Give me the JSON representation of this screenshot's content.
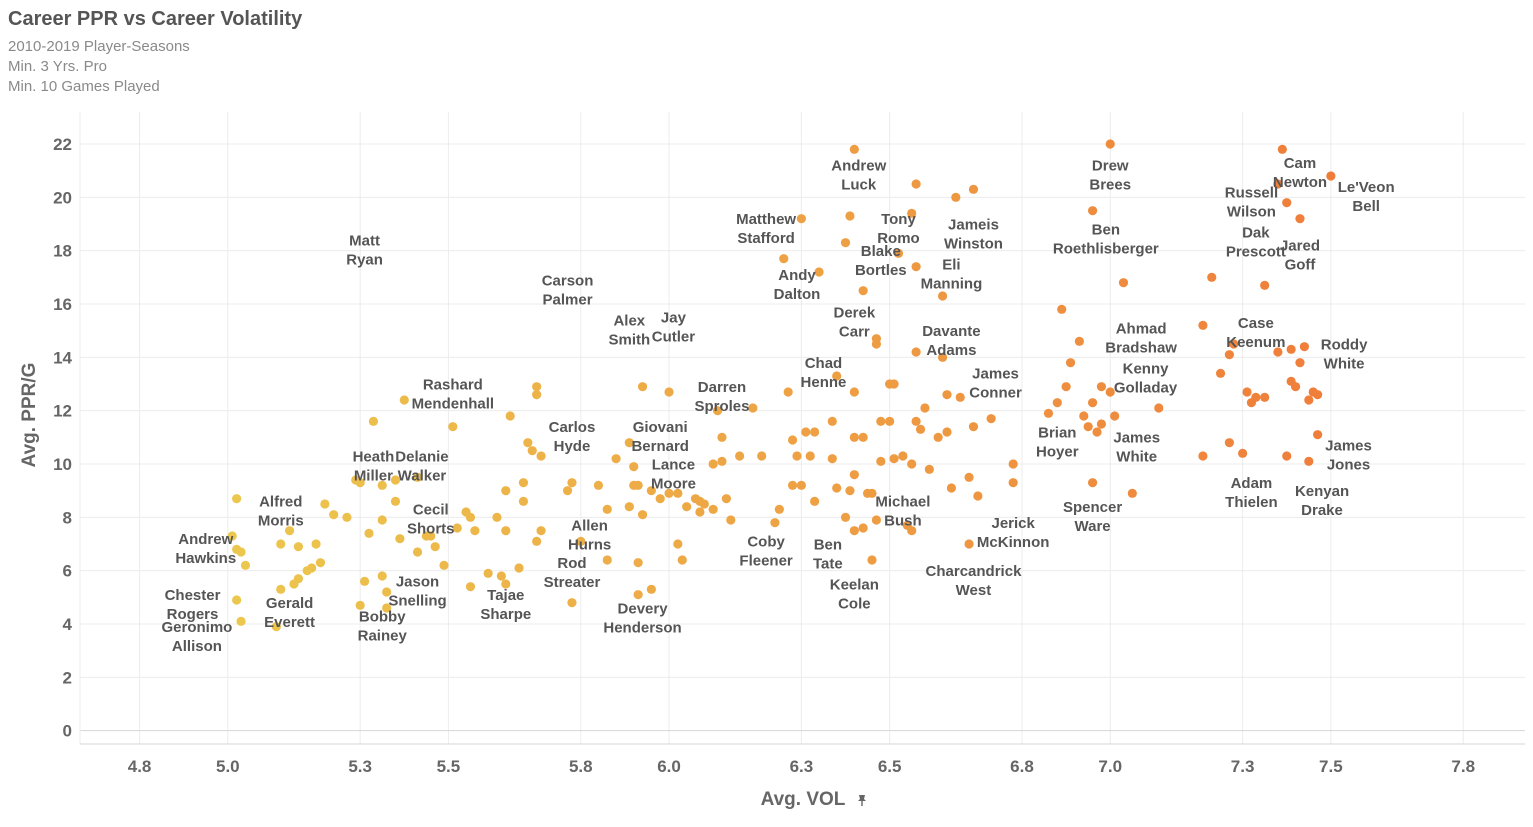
{
  "header": {
    "title": "Career PPR vs Career Volatility",
    "subtitles": [
      "2010-2019 Player-Seasons",
      "Min. 3 Yrs. Pro",
      "Min. 10 Games Played"
    ]
  },
  "colors": {
    "low": "#ecc84e",
    "high": "#ef7d3a"
  },
  "chart_data": {
    "type": "scatter",
    "title": "Career PPR vs Career Volatility",
    "xlabel": "Avg. VOL",
    "xlabel_icon": "pin-icon",
    "ylabel": "Avg. PPR/G",
    "xlim": [
      4.8,
      7.8
    ],
    "ylim": [
      0,
      22
    ],
    "xticks": [
      "4.8",
      "5.0",
      "5.3",
      "5.5",
      "5.8",
      "6.0",
      "6.3",
      "6.5",
      "6.8",
      "7.0",
      "7.3",
      "7.5",
      "7.8"
    ],
    "yticks": [
      "0",
      "2",
      "4",
      "6",
      "8",
      "10",
      "12",
      "14",
      "16",
      "18",
      "20",
      "22"
    ],
    "grid": true,
    "labels": [
      {
        "text": "Cam\nNewton",
        "x": 7.43,
        "y": 21.1
      },
      {
        "text": "Le'Veon\nBell",
        "x": 7.58,
        "y": 20.2
      },
      {
        "text": "Drew\nBrees",
        "x": 7.0,
        "y": 21.0
      },
      {
        "text": "Russell\nWilson",
        "x": 7.32,
        "y": 20.0
      },
      {
        "text": "Dak\nPrescott",
        "x": 7.33,
        "y": 18.5
      },
      {
        "text": "Jared\nGoff",
        "x": 7.43,
        "y": 18.0
      },
      {
        "text": "Ben\nRoethlisberger",
        "x": 6.99,
        "y": 18.6
      },
      {
        "text": "Andrew\nLuck",
        "x": 6.43,
        "y": 21.0
      },
      {
        "text": "Matthew\nStafford",
        "x": 6.22,
        "y": 19.0
      },
      {
        "text": "Tony\nRomo",
        "x": 6.52,
        "y": 19.0
      },
      {
        "text": "Jameis\nWinston",
        "x": 6.69,
        "y": 18.8
      },
      {
        "text": "Blake\nBortles",
        "x": 6.48,
        "y": 17.8
      },
      {
        "text": "Eli\nManning",
        "x": 6.64,
        "y": 17.3
      },
      {
        "text": "Andy\nDalton",
        "x": 6.29,
        "y": 16.9
      },
      {
        "text": "Derek\nCarr",
        "x": 6.42,
        "y": 15.5
      },
      {
        "text": "Davante\nAdams",
        "x": 6.64,
        "y": 14.8
      },
      {
        "text": "Chad\nHenne",
        "x": 6.35,
        "y": 13.6
      },
      {
        "text": "James\nConner",
        "x": 6.74,
        "y": 13.2
      },
      {
        "text": "Case\nKeenum",
        "x": 7.33,
        "y": 15.1
      },
      {
        "text": "Ahmad\nBradshaw",
        "x": 7.07,
        "y": 14.9
      },
      {
        "text": "Roddy\nWhite",
        "x": 7.53,
        "y": 14.3
      },
      {
        "text": "Kenny\nGolladay",
        "x": 7.08,
        "y": 13.4
      },
      {
        "text": "Matt\nRyan",
        "x": 5.31,
        "y": 18.2
      },
      {
        "text": "Carson\nPalmer",
        "x": 5.77,
        "y": 16.7
      },
      {
        "text": "Alex\nSmith",
        "x": 5.91,
        "y": 15.2
      },
      {
        "text": "Jay\nCutler",
        "x": 6.01,
        "y": 15.3
      },
      {
        "text": "Rashard\nMendenhall",
        "x": 5.51,
        "y": 12.8
      },
      {
        "text": "Darren\nSproles",
        "x": 6.12,
        "y": 12.7
      },
      {
        "text": "Carlos\nHyde",
        "x": 5.78,
        "y": 11.2
      },
      {
        "text": "Giovani\nBernard",
        "x": 5.98,
        "y": 11.2
      },
      {
        "text": "Brian\nHoyer",
        "x": 6.88,
        "y": 11.0
      },
      {
        "text": "James\nWhite",
        "x": 7.06,
        "y": 10.8
      },
      {
        "text": "James\nJones",
        "x": 7.54,
        "y": 10.5
      },
      {
        "text": "Heath\nMiller",
        "x": 5.33,
        "y": 10.1
      },
      {
        "text": "Delanie\nWalker",
        "x": 5.44,
        "y": 10.1
      },
      {
        "text": "Lance\nMoore",
        "x": 6.01,
        "y": 9.8
      },
      {
        "text": "Adam\nThielen",
        "x": 7.32,
        "y": 9.1
      },
      {
        "text": "Kenyan\nDrake",
        "x": 7.48,
        "y": 8.8
      },
      {
        "text": "Alfred\nMorris",
        "x": 5.12,
        "y": 8.4
      },
      {
        "text": "Cecil\nShorts",
        "x": 5.46,
        "y": 8.1
      },
      {
        "text": "Michael\nBush",
        "x": 6.53,
        "y": 8.4
      },
      {
        "text": "Spencer\nWare",
        "x": 6.96,
        "y": 8.2
      },
      {
        "text": "Jerick\nMcKinnon",
        "x": 6.78,
        "y": 7.6
      },
      {
        "text": "Allen\nHurns",
        "x": 5.82,
        "y": 7.5
      },
      {
        "text": "Andrew\nHawkins",
        "x": 4.95,
        "y": 7.0
      },
      {
        "text": "Coby\nFleener",
        "x": 6.22,
        "y": 6.9
      },
      {
        "text": "Ben\nTate",
        "x": 6.36,
        "y": 6.8
      },
      {
        "text": "Rod\nStreater",
        "x": 5.78,
        "y": 6.1
      },
      {
        "text": "Charcandrick\nWest",
        "x": 6.69,
        "y": 5.8
      },
      {
        "text": "Keelan\nCole",
        "x": 6.42,
        "y": 5.3
      },
      {
        "text": "Jason\nSnelling",
        "x": 5.43,
        "y": 5.4
      },
      {
        "text": "Tajae\nSharpe",
        "x": 5.63,
        "y": 4.9
      },
      {
        "text": "Chester\nRogers",
        "x": 4.92,
        "y": 4.9
      },
      {
        "text": "Gerald\nEverett",
        "x": 5.14,
        "y": 4.6
      },
      {
        "text": "Bobby\nRainey",
        "x": 5.35,
        "y": 4.1
      },
      {
        "text": "Devery\nHenderson",
        "x": 5.94,
        "y": 4.4
      },
      {
        "text": "Geronimo\nAllison",
        "x": 4.93,
        "y": 3.7
      }
    ],
    "points": [
      [
        7.39,
        21.8
      ],
      [
        7.5,
        20.8
      ],
      [
        7.0,
        22.0
      ],
      [
        7.38,
        20.5
      ],
      [
        7.4,
        19.8
      ],
      [
        7.43,
        19.2
      ],
      [
        6.96,
        19.5
      ],
      [
        6.42,
        21.8
      ],
      [
        6.3,
        19.2
      ],
      [
        6.41,
        19.3
      ],
      [
        6.56,
        20.5
      ],
      [
        6.65,
        20.0
      ],
      [
        6.69,
        20.3
      ],
      [
        6.55,
        19.4
      ],
      [
        6.4,
        18.3
      ],
      [
        6.52,
        17.9
      ],
      [
        6.56,
        17.4
      ],
      [
        6.26,
        17.7
      ],
      [
        6.34,
        17.2
      ],
      [
        6.44,
        16.5
      ],
      [
        6.62,
        16.3
      ],
      [
        6.47,
        14.7
      ],
      [
        6.47,
        14.5
      ],
      [
        6.56,
        14.2
      ],
      [
        6.38,
        13.3
      ],
      [
        6.62,
        14.0
      ],
      [
        6.5,
        13.0
      ],
      [
        6.51,
        13.0
      ],
      [
        6.58,
        12.1
      ],
      [
        6.63,
        12.6
      ],
      [
        6.66,
        12.5
      ],
      [
        6.42,
        12.7
      ],
      [
        6.27,
        12.7
      ],
      [
        6.19,
        12.1
      ],
      [
        7.03,
        16.8
      ],
      [
        7.23,
        17.0
      ],
      [
        7.35,
        16.7
      ],
      [
        6.89,
        15.8
      ],
      [
        7.21,
        15.2
      ],
      [
        7.28,
        14.5
      ],
      [
        6.93,
        14.6
      ],
      [
        7.44,
        14.4
      ],
      [
        7.38,
        14.2
      ],
      [
        7.41,
        14.3
      ],
      [
        7.27,
        14.1
      ],
      [
        7.43,
        13.8
      ],
      [
        6.91,
        13.8
      ],
      [
        6.98,
        12.9
      ],
      [
        7.0,
        12.7
      ],
      [
        6.88,
        12.3
      ],
      [
        6.9,
        12.9
      ],
      [
        7.25,
        13.4
      ],
      [
        7.41,
        13.1
      ],
      [
        7.42,
        12.9
      ],
      [
        7.31,
        12.7
      ],
      [
        7.33,
        12.5
      ],
      [
        7.32,
        12.3
      ],
      [
        7.35,
        12.5
      ],
      [
        7.46,
        12.7
      ],
      [
        7.47,
        12.6
      ],
      [
        7.45,
        12.4
      ],
      [
        6.86,
        11.9
      ],
      [
        6.96,
        12.3
      ],
      [
        6.94,
        11.8
      ],
      [
        6.98,
        11.5
      ],
      [
        7.01,
        11.8
      ],
      [
        7.11,
        12.1
      ],
      [
        6.95,
        11.4
      ],
      [
        7.47,
        11.1
      ],
      [
        6.97,
        11.2
      ],
      [
        7.27,
        10.8
      ],
      [
        7.21,
        10.3
      ],
      [
        7.3,
        10.4
      ],
      [
        7.4,
        10.3
      ],
      [
        7.45,
        10.1
      ],
      [
        6.96,
        9.3
      ],
      [
        7.05,
        8.9
      ],
      [
        6.78,
        10.0
      ],
      [
        6.78,
        9.3
      ],
      [
        6.68,
        9.5
      ],
      [
        6.64,
        9.1
      ],
      [
        6.7,
        8.8
      ],
      [
        6.55,
        10.0
      ],
      [
        6.59,
        9.8
      ],
      [
        6.53,
        10.3
      ],
      [
        6.51,
        10.2
      ],
      [
        6.48,
        11.6
      ],
      [
        6.5,
        11.6
      ],
      [
        6.56,
        11.6
      ],
      [
        6.57,
        11.3
      ],
      [
        6.61,
        11.0
      ],
      [
        6.63,
        11.2
      ],
      [
        6.69,
        11.4
      ],
      [
        6.73,
        11.7
      ],
      [
        6.48,
        10.1
      ],
      [
        6.42,
        11.0
      ],
      [
        6.44,
        11.0
      ],
      [
        6.37,
        11.6
      ],
      [
        6.33,
        11.2
      ],
      [
        6.31,
        11.2
      ],
      [
        6.28,
        10.9
      ],
      [
        6.29,
        10.3
      ],
      [
        6.32,
        10.3
      ],
      [
        6.37,
        10.2
      ],
      [
        6.21,
        10.3
      ],
      [
        6.16,
        10.3
      ],
      [
        6.12,
        10.1
      ],
      [
        6.11,
        12.0
      ],
      [
        6.12,
        11.0
      ],
      [
        6.38,
        9.1
      ],
      [
        6.42,
        9.6
      ],
      [
        6.45,
        8.9
      ],
      [
        6.46,
        8.9
      ],
      [
        6.41,
        9.0
      ],
      [
        6.28,
        9.2
      ],
      [
        6.3,
        9.2
      ],
      [
        6.33,
        8.6
      ],
      [
        6.24,
        7.8
      ],
      [
        6.25,
        8.3
      ],
      [
        6.4,
        8.0
      ],
      [
        6.44,
        7.6
      ],
      [
        6.42,
        7.5
      ],
      [
        6.47,
        7.9
      ],
      [
        6.54,
        7.7
      ],
      [
        6.55,
        7.5
      ],
      [
        6.46,
        6.4
      ],
      [
        6.68,
        7.0
      ],
      [
        6.0,
        12.7
      ],
      [
        5.94,
        12.9
      ],
      [
        5.91,
        10.8
      ],
      [
        5.93,
        9.2
      ],
      [
        5.92,
        9.2
      ],
      [
        5.96,
        9.0
      ],
      [
        6.0,
        8.9
      ],
      [
        6.02,
        8.9
      ],
      [
        6.06,
        8.7
      ],
      [
        6.07,
        8.6
      ],
      [
        6.04,
        8.4
      ],
      [
        6.08,
        8.5
      ],
      [
        6.1,
        8.3
      ],
      [
        6.13,
        8.7
      ],
      [
        6.1,
        10.0
      ],
      [
        6.14,
        7.9
      ],
      [
        6.07,
        8.2
      ],
      [
        5.98,
        8.7
      ],
      [
        5.94,
        8.1
      ],
      [
        5.91,
        8.4
      ],
      [
        5.86,
        8.3
      ],
      [
        5.88,
        10.2
      ],
      [
        5.92,
        9.9
      ],
      [
        5.84,
        9.2
      ],
      [
        5.78,
        9.3
      ],
      [
        5.77,
        9.0
      ],
      [
        5.8,
        7.1
      ],
      [
        5.86,
        6.4
      ],
      [
        5.93,
        6.3
      ],
      [
        6.02,
        7.0
      ],
      [
        6.03,
        6.4
      ],
      [
        5.96,
        5.3
      ],
      [
        5.93,
        5.1
      ],
      [
        5.78,
        4.8
      ],
      [
        5.7,
        12.9
      ],
      [
        5.7,
        12.6
      ],
      [
        5.64,
        11.8
      ],
      [
        5.68,
        10.8
      ],
      [
        5.69,
        10.5
      ],
      [
        5.71,
        10.3
      ],
      [
        5.67,
        9.3
      ],
      [
        5.63,
        9.0
      ],
      [
        5.67,
        8.6
      ],
      [
        5.61,
        8.0
      ],
      [
        5.63,
        7.5
      ],
      [
        5.71,
        7.5
      ],
      [
        5.7,
        7.1
      ],
      [
        5.66,
        6.1
      ],
      [
        5.59,
        5.9
      ],
      [
        5.62,
        5.8
      ],
      [
        5.63,
        5.5
      ],
      [
        5.55,
        5.4
      ],
      [
        5.56,
        7.5
      ],
      [
        5.55,
        8.0
      ],
      [
        5.54,
        8.2
      ],
      [
        5.52,
        7.6
      ],
      [
        5.51,
        11.4
      ],
      [
        5.4,
        12.4
      ],
      [
        5.33,
        11.6
      ],
      [
        5.43,
        9.5
      ],
      [
        5.38,
        9.4
      ],
      [
        5.35,
        9.2
      ],
      [
        5.3,
        9.3
      ],
      [
        5.29,
        9.4
      ],
      [
        5.27,
        8.0
      ],
      [
        5.38,
        8.6
      ],
      [
        5.35,
        7.9
      ],
      [
        5.32,
        7.4
      ],
      [
        5.39,
        7.2
      ],
      [
        5.45,
        7.3
      ],
      [
        5.46,
        7.3
      ],
      [
        5.47,
        6.9
      ],
      [
        5.43,
        6.7
      ],
      [
        5.49,
        6.2
      ],
      [
        5.35,
        5.8
      ],
      [
        5.36,
        5.2
      ],
      [
        5.31,
        5.6
      ],
      [
        5.3,
        4.7
      ],
      [
        5.36,
        4.6
      ],
      [
        5.24,
        8.1
      ],
      [
        5.22,
        8.5
      ],
      [
        5.2,
        7.0
      ],
      [
        5.21,
        6.3
      ],
      [
        5.19,
        6.1
      ],
      [
        5.18,
        6.0
      ],
      [
        5.16,
        5.7
      ],
      [
        5.15,
        5.5
      ],
      [
        5.12,
        5.3
      ],
      [
        5.14,
        7.5
      ],
      [
        5.12,
        7.0
      ],
      [
        5.16,
        6.9
      ],
      [
        5.11,
        3.9
      ],
      [
        5.02,
        8.7
      ],
      [
        5.01,
        7.3
      ],
      [
        5.02,
        6.8
      ],
      [
        5.03,
        6.7
      ],
      [
        5.04,
        6.2
      ],
      [
        5.02,
        4.9
      ],
      [
        5.03,
        4.1
      ]
    ]
  }
}
